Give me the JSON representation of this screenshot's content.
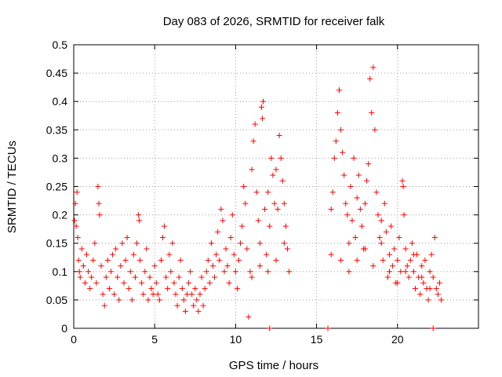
{
  "chart_data": {
    "type": "scatter",
    "title": "Day 083 of 2026, SRMTID for receiver falk",
    "xlabel": "GPS time / hours",
    "ylabel": "SRMTID / TECUs",
    "xlim": [
      0,
      25
    ],
    "ylim": [
      0,
      0.5
    ],
    "xticks": [
      0,
      5,
      10,
      15,
      20
    ],
    "yticks": [
      0,
      0.05,
      0.1,
      0.15,
      0.2,
      0.25,
      0.3,
      0.35,
      0.4,
      0.45,
      0.5
    ],
    "grid": true,
    "marker": "plus",
    "marker_color": "#ff0000",
    "series": [
      {
        "points": [
          [
            0.05,
            0.19
          ],
          [
            0.1,
            0.22
          ],
          [
            0.15,
            0.18
          ],
          [
            0.2,
            0.24
          ],
          [
            0.25,
            0.16
          ],
          [
            0.3,
            0.12
          ],
          [
            0.35,
            0.1
          ],
          [
            0.4,
            0.09
          ],
          [
            0.5,
            0.14
          ],
          [
            0.6,
            0.11
          ],
          [
            0.7,
            0.08
          ],
          [
            0.8,
            0.13
          ],
          [
            0.9,
            0.1
          ],
          [
            1.0,
            0.07
          ],
          [
            1.1,
            0.09
          ],
          [
            1.2,
            0.12
          ],
          [
            1.3,
            0.15
          ],
          [
            1.4,
            0.08
          ],
          [
            1.5,
            0.25
          ],
          [
            1.55,
            0.22
          ],
          [
            1.6,
            0.2
          ],
          [
            1.7,
            0.11
          ],
          [
            1.8,
            0.06
          ],
          [
            1.9,
            0.04
          ],
          [
            2.0,
            0.09
          ],
          [
            2.1,
            0.12
          ],
          [
            2.2,
            0.07
          ],
          [
            2.3,
            0.1
          ],
          [
            2.4,
            0.13
          ],
          [
            2.5,
            0.06
          ],
          [
            2.6,
            0.14
          ],
          [
            2.7,
            0.09
          ],
          [
            2.8,
            0.05
          ],
          [
            2.9,
            0.11
          ],
          [
            3.0,
            0.15
          ],
          [
            3.1,
            0.08
          ],
          [
            3.2,
            0.12
          ],
          [
            3.3,
            0.16
          ],
          [
            3.4,
            0.07
          ],
          [
            3.5,
            0.1
          ],
          [
            3.6,
            0.05
          ],
          [
            3.7,
            0.13
          ],
          [
            3.8,
            0.09
          ],
          [
            3.9,
            0.15
          ],
          [
            4.0,
            0.2
          ],
          [
            4.05,
            0.19
          ],
          [
            4.1,
            0.12
          ],
          [
            4.2,
            0.08
          ],
          [
            4.3,
            0.06
          ],
          [
            4.4,
            0.1
          ],
          [
            4.5,
            0.14
          ],
          [
            4.6,
            0.05
          ],
          [
            4.7,
            0.09
          ],
          [
            4.8,
            0.07
          ],
          [
            4.9,
            0.06
          ],
          [
            5.0,
            0.11
          ],
          [
            5.1,
            0.08
          ],
          [
            5.2,
            0.06
          ],
          [
            5.3,
            0.05
          ],
          [
            5.4,
            0.12
          ],
          [
            5.5,
            0.16
          ],
          [
            5.6,
            0.18
          ],
          [
            5.7,
            0.09
          ],
          [
            5.8,
            0.07
          ],
          [
            5.9,
            0.13
          ],
          [
            6.0,
            0.1
          ],
          [
            6.1,
            0.15
          ],
          [
            6.2,
            0.08
          ],
          [
            6.3,
            0.06
          ],
          [
            6.4,
            0.04
          ],
          [
            6.5,
            0.09
          ],
          [
            6.6,
            0.12
          ],
          [
            6.7,
            0.07
          ],
          [
            6.8,
            0.05
          ],
          [
            6.9,
            0.03
          ],
          [
            7.0,
            0.06
          ],
          [
            7.1,
            0.08
          ],
          [
            7.2,
            0.1
          ],
          [
            7.3,
            0.06
          ],
          [
            7.4,
            0.04
          ],
          [
            7.5,
            0.07
          ],
          [
            7.6,
            0.05
          ],
          [
            7.7,
            0.03
          ],
          [
            7.8,
            0.06
          ],
          [
            7.9,
            0.09
          ],
          [
            8.0,
            0.04
          ],
          [
            8.1,
            0.07
          ],
          [
            8.2,
            0.1
          ],
          [
            8.3,
            0.12
          ],
          [
            8.4,
            0.08
          ],
          [
            8.5,
            0.15
          ],
          [
            8.6,
            0.11
          ],
          [
            8.7,
            0.09
          ],
          [
            8.8,
            0.13
          ],
          [
            8.9,
            0.17
          ],
          [
            9.0,
            0.12
          ],
          [
            9.1,
            0.21
          ],
          [
            9.2,
            0.19
          ],
          [
            9.3,
            0.1
          ],
          [
            9.4,
            0.14
          ],
          [
            9.5,
            0.11
          ],
          [
            9.6,
            0.08
          ],
          [
            9.7,
            0.16
          ],
          [
            9.8,
            0.2
          ],
          [
            9.9,
            0.13
          ],
          [
            10.0,
            0.1
          ],
          [
            10.1,
            0.07
          ],
          [
            10.2,
            0.12
          ],
          [
            10.3,
            0.15
          ],
          [
            10.4,
            0.18
          ],
          [
            10.5,
            0.25
          ],
          [
            10.6,
            0.22
          ],
          [
            10.7,
            0.14
          ],
          [
            10.8,
            0.02
          ],
          [
            10.9,
            0.1
          ],
          [
            11.0,
            0.28
          ],
          [
            11.1,
            0.33
          ],
          [
            11.2,
            0.36
          ],
          [
            11.3,
            0.24
          ],
          [
            11.4,
            0.19
          ],
          [
            11.5,
            0.15
          ],
          [
            11.6,
            0.39
          ],
          [
            11.7,
            0.4
          ],
          [
            11.65,
            0.37
          ],
          [
            11.8,
            0.21
          ],
          [
            11.9,
            0.13
          ],
          [
            12.0,
            0.24
          ],
          [
            12.1,
            0.18
          ],
          [
            12.2,
            0.3
          ],
          [
            12.3,
            0.27
          ],
          [
            12.4,
            0.22
          ],
          [
            12.5,
            0.28
          ],
          [
            12.6,
            0.21
          ],
          [
            12.7,
            0.34
          ],
          [
            12.8,
            0.3
          ],
          [
            12.9,
            0.26
          ],
          [
            13.0,
            0.22
          ],
          [
            13.1,
            0.18
          ],
          [
            13.2,
            0.14
          ],
          [
            13.3,
            0.1
          ],
          [
            13.0,
            0.15
          ],
          [
            12.5,
            0.12
          ],
          [
            12.0,
            0.1
          ],
          [
            11.5,
            0.11
          ],
          [
            11.0,
            0.09
          ],
          [
            15.7,
            0.0
          ],
          [
            15.9,
            0.13
          ],
          [
            15.9,
            0.21
          ],
          [
            16.0,
            0.24
          ],
          [
            16.1,
            0.3
          ],
          [
            16.2,
            0.33
          ],
          [
            16.3,
            0.38
          ],
          [
            16.4,
            0.42
          ],
          [
            16.5,
            0.35
          ],
          [
            16.6,
            0.31
          ],
          [
            16.7,
            0.27
          ],
          [
            16.8,
            0.22
          ],
          [
            16.9,
            0.2
          ],
          [
            17.0,
            0.15
          ],
          [
            17.1,
            0.25
          ],
          [
            17.2,
            0.19
          ],
          [
            17.3,
            0.3
          ],
          [
            17.4,
            0.16
          ],
          [
            17.5,
            0.23
          ],
          [
            17.6,
            0.27
          ],
          [
            17.7,
            0.21
          ],
          [
            17.8,
            0.18
          ],
          [
            17.9,
            0.14
          ],
          [
            18.0,
            0.22
          ],
          [
            18.1,
            0.26
          ],
          [
            18.2,
            0.29
          ],
          [
            18.3,
            0.44
          ],
          [
            18.4,
            0.38
          ],
          [
            18.5,
            0.46
          ],
          [
            18.6,
            0.35
          ],
          [
            18.7,
            0.24
          ],
          [
            18.8,
            0.2
          ],
          [
            18.9,
            0.16
          ],
          [
            19.0,
            0.19
          ],
          [
            19.1,
            0.12
          ],
          [
            19.2,
            0.22
          ],
          [
            19.3,
            0.17
          ],
          [
            19.4,
            0.09
          ],
          [
            19.5,
            0.13
          ],
          [
            19.6,
            0.18
          ],
          [
            19.7,
            0.11
          ],
          [
            19.8,
            0.14
          ],
          [
            19.9,
            0.08
          ],
          [
            20.0,
            0.12
          ],
          [
            20.1,
            0.16
          ],
          [
            20.2,
            0.1
          ],
          [
            20.3,
            0.26
          ],
          [
            20.35,
            0.25
          ],
          [
            20.4,
            0.2
          ],
          [
            20.5,
            0.14
          ],
          [
            20.6,
            0.11
          ],
          [
            20.7,
            0.09
          ],
          [
            20.8,
            0.12
          ],
          [
            20.9,
            0.15
          ],
          [
            21.0,
            0.1
          ],
          [
            21.1,
            0.07
          ],
          [
            21.2,
            0.13
          ],
          [
            21.3,
            0.09
          ],
          [
            21.4,
            0.06
          ],
          [
            21.5,
            0.11
          ],
          [
            21.6,
            0.08
          ],
          [
            21.7,
            0.12
          ],
          [
            21.8,
            0.07
          ],
          [
            21.9,
            0.05
          ],
          [
            22.0,
            0.1
          ],
          [
            22.1,
            0.13
          ],
          [
            22.2,
            0.09
          ],
          [
            22.3,
            0.16
          ],
          [
            22.4,
            0.07
          ],
          [
            22.5,
            0.06
          ],
          [
            22.6,
            0.08
          ],
          [
            22.7,
            0.05
          ],
          [
            22.2,
            0.0
          ],
          [
            16.5,
            0.12
          ],
          [
            17.0,
            0.1
          ],
          [
            17.5,
            0.12
          ],
          [
            18.0,
            0.14
          ],
          [
            18.5,
            0.11
          ],
          [
            19.0,
            0.15
          ],
          [
            19.5,
            0.1
          ],
          [
            20.0,
            0.08
          ],
          [
            20.5,
            0.1
          ],
          [
            21.0,
            0.13
          ],
          [
            21.5,
            0.09
          ],
          [
            22.0,
            0.07
          ],
          [
            12.1,
            0.0
          ]
        ]
      }
    ]
  }
}
